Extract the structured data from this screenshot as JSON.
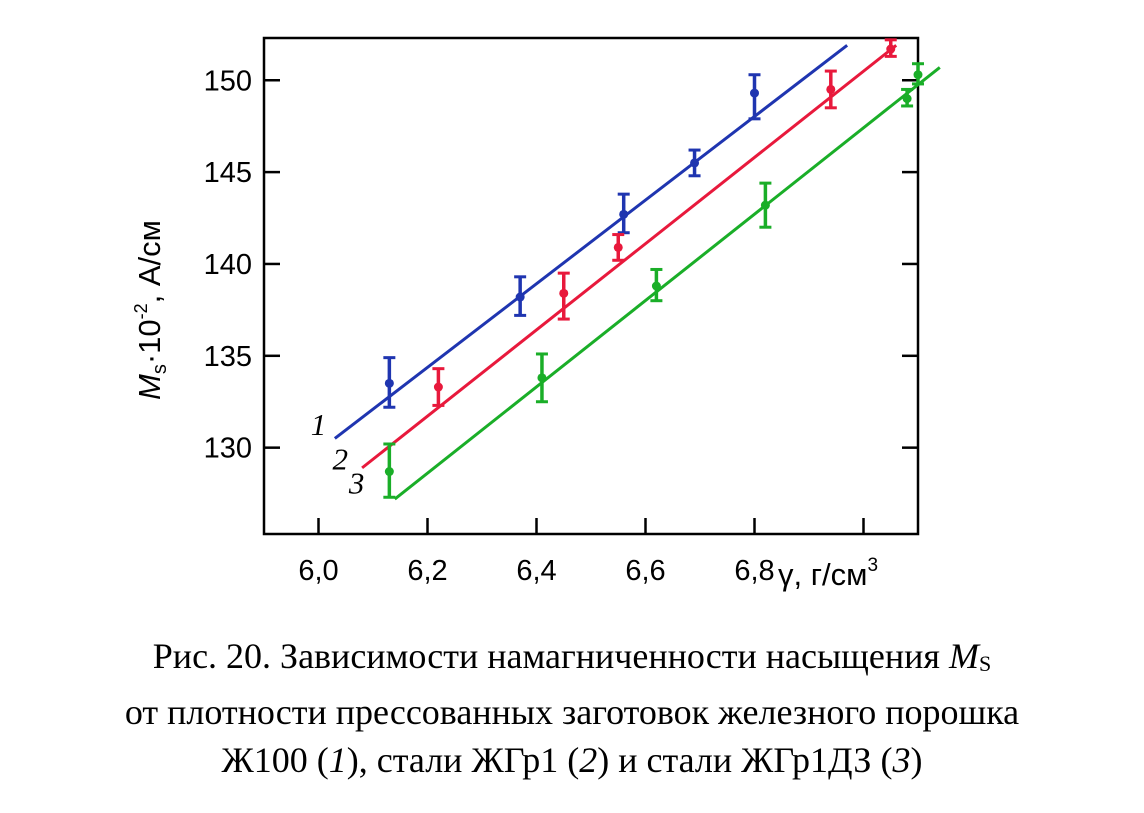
{
  "chart_data": {
    "type": "scatter",
    "title": "",
    "ylabel": {
      "symbol": "M",
      "subscript": "s",
      "factor": "·10",
      "exponent": "-2",
      "unit": ", А/см"
    },
    "xlabel": {
      "symbol": "γ",
      "unit": ", г/см",
      "exponent": "3"
    },
    "xlim": [
      5.9,
      7.1
    ],
    "ylim": [
      125.3,
      152.3
    ],
    "x_ticks": [
      6.0,
      6.2,
      6.4,
      6.6,
      6.8,
      7.0
    ],
    "x_tick_labels": [
      "6,0",
      "6,2",
      "6,4",
      "6,6",
      "6,8",
      ""
    ],
    "y_ticks": [
      130,
      135,
      140,
      145,
      150
    ],
    "y_tick_labels": [
      "130",
      "135",
      "140",
      "145",
      "150"
    ],
    "grid": false,
    "series": [
      {
        "name": "1",
        "color": "#1f35b0",
        "points": [
          {
            "x": 6.13,
            "y": 133.5,
            "lo": 132.2,
            "hi": 134.9
          },
          {
            "x": 6.37,
            "y": 138.2,
            "lo": 137.2,
            "hi": 139.3
          },
          {
            "x": 6.56,
            "y": 142.7,
            "lo": 141.7,
            "hi": 143.8
          },
          {
            "x": 6.69,
            "y": 145.5,
            "lo": 144.8,
            "hi": 146.2
          },
          {
            "x": 6.8,
            "y": 149.3,
            "lo": 147.9,
            "hi": 150.3
          }
        ],
        "fit": [
          [
            6.03,
            130.5
          ],
          [
            6.97,
            151.9
          ]
        ]
      },
      {
        "name": "2",
        "color": "#e8193c",
        "points": [
          {
            "x": 6.22,
            "y": 133.3,
            "lo": 132.3,
            "hi": 134.3
          },
          {
            "x": 6.45,
            "y": 138.4,
            "lo": 137.0,
            "hi": 139.5
          },
          {
            "x": 6.55,
            "y": 140.9,
            "lo": 140.2,
            "hi": 141.6
          },
          {
            "x": 6.94,
            "y": 149.5,
            "lo": 148.5,
            "hi": 150.5
          },
          {
            "x": 7.05,
            "y": 151.7,
            "lo": 151.3,
            "hi": 152.2
          }
        ],
        "fit": [
          [
            6.08,
            128.9
          ],
          [
            7.06,
            151.9
          ]
        ]
      },
      {
        "name": "3",
        "color": "#1aae28",
        "points": [
          {
            "x": 6.13,
            "y": 128.7,
            "lo": 127.3,
            "hi": 130.2
          },
          {
            "x": 6.41,
            "y": 133.8,
            "lo": 132.5,
            "hi": 135.1
          },
          {
            "x": 6.62,
            "y": 138.8,
            "lo": 138.0,
            "hi": 139.7
          },
          {
            "x": 6.82,
            "y": 143.2,
            "lo": 142.0,
            "hi": 144.4
          },
          {
            "x": 7.08,
            "y": 149.0,
            "lo": 148.6,
            "hi": 149.5
          },
          {
            "x": 7.1,
            "y": 150.3,
            "lo": 149.8,
            "hi": 150.9
          }
        ],
        "fit": [
          [
            6.14,
            127.2
          ],
          [
            7.14,
            150.7
          ]
        ]
      }
    ],
    "line_labels": [
      {
        "text": "1",
        "x": 6.0,
        "y": 130.7
      },
      {
        "text": "2",
        "x": 6.04,
        "y": 128.8
      },
      {
        "text": "3",
        "x": 6.07,
        "y": 127.5
      }
    ]
  },
  "caption": {
    "line1_text": "Рис. 20. Зависимости намагниченности насыщения ",
    "line1_symbol": "M",
    "line1_sub": "S",
    "line2": "от плотности прессованных заготовок железного порошка",
    "line3_a": "Ж100 (",
    "line3_n1": "1",
    "line3_b": "), стали ЖГр1 (",
    "line3_n2": "2",
    "line3_c": ") и стали ЖГр1ДЗ (",
    "line3_n3": "3",
    "line3_d": ")"
  }
}
